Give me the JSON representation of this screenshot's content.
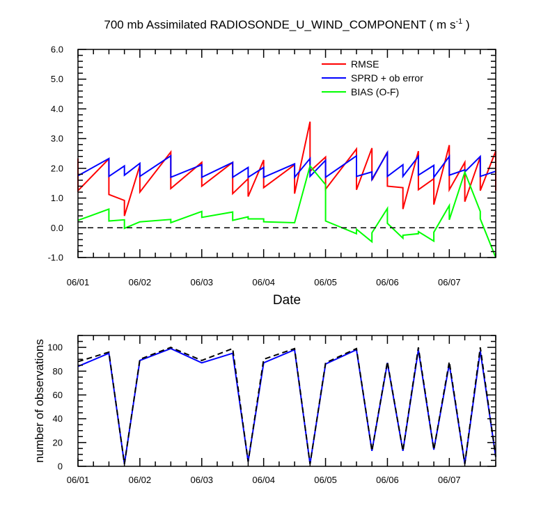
{
  "chart_data": [
    {
      "type": "line",
      "title_main": "700 mb Assimilated RADIOSONDE_U_WIND_COMPONENT ( m s",
      "title_sup": "-1",
      "title_tail": " )",
      "xlabel": "Date",
      "ylabel": "",
      "x_tick_labels": [
        "06/01",
        "06/02",
        "06/03",
        "06/04",
        "06/05",
        "06/06",
        "06/07"
      ],
      "x_tick_days": [
        0,
        1,
        2,
        3,
        4,
        5,
        6
      ],
      "xlim_days": [
        0,
        6.75
      ],
      "ylim": [
        -1.0,
        6.0
      ],
      "y_ticks": [
        -1.0,
        0.0,
        1.0,
        2.0,
        3.0,
        4.0,
        5.0,
        6.0
      ],
      "y_tick_labels": [
        "-1.0",
        "0.0",
        "1.0",
        "2.0",
        "3.0",
        "4.0",
        "5.0",
        "6.0"
      ],
      "zero_line": true,
      "grid": false,
      "legend_position": "top-right",
      "colors": {
        "RMSE": "#ff0000",
        "SPRD + ob error": "#0000ff",
        "BIAS (O-F)": "#00ff00"
      },
      "series": [
        {
          "name": "RMSE",
          "points": [
            [
              0,
              2.33
            ],
            [
              0,
              1.25
            ],
            [
              0.5,
              2.32
            ],
            [
              0.5,
              1.12
            ],
            [
              0.75,
              0.92
            ],
            [
              0.75,
              0.4
            ],
            [
              1.0,
              2.1
            ],
            [
              1.0,
              1.2
            ],
            [
              1.5,
              2.55
            ],
            [
              1.5,
              1.32
            ],
            [
              2.0,
              2.2
            ],
            [
              2.0,
              1.4
            ],
            [
              2.5,
              2.2
            ],
            [
              2.5,
              1.15
            ],
            [
              2.75,
              1.65
            ],
            [
              2.75,
              1.05
            ],
            [
              3.0,
              2.28
            ],
            [
              3.0,
              1.35
            ],
            [
              3.5,
              2.12
            ],
            [
              3.5,
              1.15
            ],
            [
              3.75,
              3.57
            ],
            [
              3.75,
              1.9
            ],
            [
              4.0,
              2.38
            ],
            [
              4.0,
              1.3
            ],
            [
              4.5,
              2.65
            ],
            [
              4.5,
              1.28
            ],
            [
              4.75,
              2.68
            ],
            [
              4.75,
              1.6
            ],
            [
              5.0,
              2.55
            ],
            [
              5.0,
              1.4
            ],
            [
              5.25,
              1.35
            ],
            [
              5.25,
              0.63
            ],
            [
              5.5,
              2.58
            ],
            [
              5.5,
              1.28
            ],
            [
              5.75,
              1.65
            ],
            [
              5.75,
              0.78
            ],
            [
              6.0,
              2.78
            ],
            [
              6.0,
              1.28
            ],
            [
              6.25,
              2.2
            ],
            [
              6.25,
              0.88
            ],
            [
              6.5,
              2.38
            ],
            [
              6.5,
              1.25
            ],
            [
              6.75,
              2.58
            ],
            [
              6.75,
              1.25
            ]
          ]
        },
        {
          "name": "SPRD + ob error",
          "points": [
            [
              0,
              1.75
            ],
            [
              0.5,
              2.33
            ],
            [
              0.5,
              1.73
            ],
            [
              0.75,
              2.08
            ],
            [
              0.75,
              1.77
            ],
            [
              1.0,
              2.17
            ],
            [
              1.0,
              1.73
            ],
            [
              1.5,
              2.42
            ],
            [
              1.5,
              1.7
            ],
            [
              2.0,
              2.12
            ],
            [
              2.0,
              1.7
            ],
            [
              2.5,
              2.2
            ],
            [
              2.5,
              1.7
            ],
            [
              2.75,
              2.03
            ],
            [
              2.75,
              1.7
            ],
            [
              3.0,
              2.03
            ],
            [
              3.0,
              1.7
            ],
            [
              3.5,
              2.15
            ],
            [
              3.5,
              1.7
            ],
            [
              3.75,
              2.33
            ],
            [
              3.75,
              1.73
            ],
            [
              4.0,
              2.27
            ],
            [
              4.0,
              1.7
            ],
            [
              4.5,
              2.42
            ],
            [
              4.5,
              1.73
            ],
            [
              4.75,
              1.88
            ],
            [
              4.75,
              1.63
            ],
            [
              5.0,
              2.53
            ],
            [
              5.0,
              1.73
            ],
            [
              5.25,
              2.12
            ],
            [
              5.25,
              1.73
            ],
            [
              5.5,
              2.4
            ],
            [
              5.5,
              1.77
            ],
            [
              5.75,
              2.1
            ],
            [
              5.75,
              1.7
            ],
            [
              6.0,
              2.4
            ],
            [
              6.0,
              1.77
            ],
            [
              6.25,
              1.95
            ],
            [
              6.25,
              1.88
            ],
            [
              6.5,
              2.4
            ],
            [
              6.5,
              1.73
            ],
            [
              6.75,
              1.9
            ]
          ]
        },
        {
          "name": "BIAS (O-F)",
          "points": [
            [
              0,
              0.25
            ],
            [
              0.5,
              0.63
            ],
            [
              0.5,
              0.23
            ],
            [
              0.75,
              0.27
            ],
            [
              0.75,
              -0.02
            ],
            [
              1.0,
              0.2
            ],
            [
              1.5,
              0.28
            ],
            [
              1.5,
              0.17
            ],
            [
              2.0,
              0.55
            ],
            [
              2.0,
              0.35
            ],
            [
              2.5,
              0.53
            ],
            [
              2.5,
              0.25
            ],
            [
              2.75,
              0.37
            ],
            [
              2.75,
              0.3
            ],
            [
              3.0,
              0.3
            ],
            [
              3.0,
              0.2
            ],
            [
              3.5,
              0.17
            ],
            [
              3.75,
              2.08
            ],
            [
              4.0,
              1.45
            ],
            [
              4.0,
              0.23
            ],
            [
              4.5,
              -0.2
            ],
            [
              4.5,
              -0.05
            ],
            [
              4.75,
              -0.47
            ],
            [
              4.75,
              -0.17
            ],
            [
              5.0,
              0.65
            ],
            [
              5.0,
              0.15
            ],
            [
              5.25,
              -0.35
            ],
            [
              5.25,
              -0.25
            ],
            [
              5.5,
              -0.2
            ],
            [
              5.5,
              -0.13
            ],
            [
              5.75,
              -0.45
            ],
            [
              5.75,
              -0.15
            ],
            [
              6.0,
              0.75
            ],
            [
              6.0,
              0.27
            ],
            [
              6.25,
              1.87
            ],
            [
              6.5,
              0.55
            ],
            [
              6.5,
              0.3
            ],
            [
              6.75,
              -1.0
            ]
          ]
        }
      ]
    },
    {
      "type": "line",
      "title": "",
      "xlabel": "",
      "ylabel": "number of observations",
      "x_tick_labels": [
        "06/01",
        "06/02",
        "06/03",
        "06/04",
        "06/05",
        "06/06",
        "06/07"
      ],
      "x_tick_days": [
        0,
        1,
        2,
        3,
        4,
        5,
        6
      ],
      "xlim_days": [
        0,
        6.75
      ],
      "ylim": [
        0,
        110
      ],
      "y_ticks": [
        0,
        20,
        40,
        60,
        80,
        100
      ],
      "y_tick_labels": [
        "0",
        "20",
        "40",
        "60",
        "80",
        "100"
      ],
      "grid": false,
      "colors": {
        "used": "#0000ff",
        "possible": "#000000"
      },
      "series": [
        {
          "line": "solid",
          "color": "#0000ff",
          "points": [
            [
              0,
              84
            ],
            [
              0.5,
              95
            ],
            [
              0.75,
              2
            ],
            [
              1.0,
              89
            ],
            [
              1.5,
              99
            ],
            [
              2.0,
              87
            ],
            [
              2.5,
              95
            ],
            [
              2.75,
              4
            ],
            [
              3.0,
              87
            ],
            [
              3.5,
              98
            ],
            [
              3.75,
              2
            ],
            [
              4.0,
              86
            ],
            [
              4.5,
              98
            ],
            [
              4.75,
              13
            ],
            [
              5.0,
              87
            ],
            [
              5.25,
              13
            ],
            [
              5.5,
              98
            ],
            [
              5.75,
              14
            ],
            [
              6.0,
              86
            ],
            [
              6.25,
              2
            ],
            [
              6.5,
              97
            ],
            [
              6.75,
              8
            ]
          ]
        },
        {
          "line": "dashed",
          "color": "#000000",
          "points": [
            [
              0,
              88
            ],
            [
              0.5,
              96
            ],
            [
              0.75,
              2
            ],
            [
              1.0,
              90
            ],
            [
              1.5,
              100
            ],
            [
              2.0,
              89
            ],
            [
              2.5,
              99
            ],
            [
              2.75,
              4
            ],
            [
              3.0,
              90
            ],
            [
              3.5,
              99
            ],
            [
              3.75,
              2
            ],
            [
              4.0,
              87
            ],
            [
              4.5,
              99
            ],
            [
              4.75,
              13
            ],
            [
              5.0,
              88
            ],
            [
              5.25,
              13
            ],
            [
              5.5,
              100
            ],
            [
              5.75,
              14
            ],
            [
              6.0,
              88
            ],
            [
              6.25,
              2
            ],
            [
              6.5,
              100
            ],
            [
              6.75,
              8
            ]
          ]
        }
      ]
    }
  ]
}
